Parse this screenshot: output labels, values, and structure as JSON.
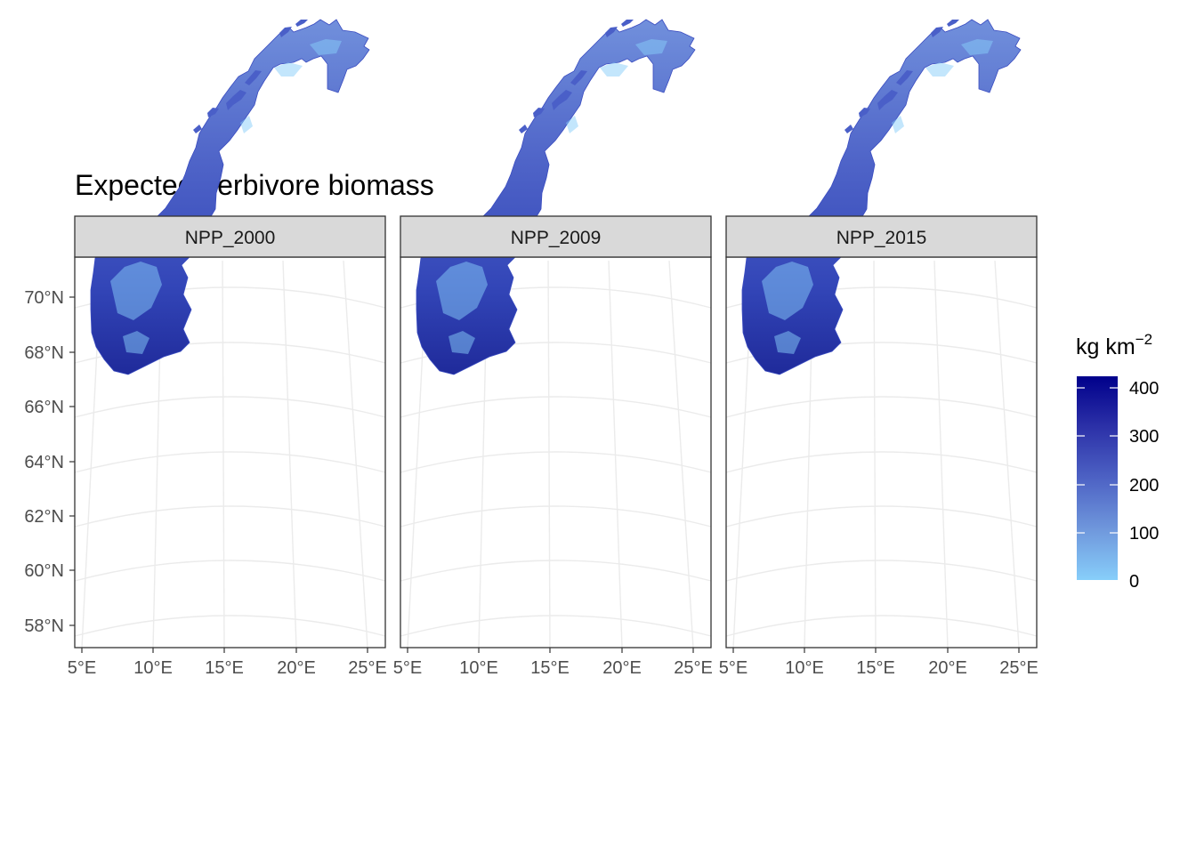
{
  "title": "Expected herbivore biomass",
  "colors": {
    "low": "#87CEFA",
    "high": "#00008B"
  },
  "legend": {
    "title_base": "kg km",
    "title_exponent": "−2",
    "breaks": [
      "400",
      "300",
      "200",
      "100",
      "0"
    ]
  },
  "chart_data": {
    "type": "heatmap",
    "title": "Expected herbivore biomass",
    "facets": [
      "NPP_2000",
      "NPP_2009",
      "NPP_2015"
    ],
    "x_ticks": [
      "5°E",
      "10°E",
      "15°E",
      "20°E",
      "25°E"
    ],
    "y_ticks": [
      "70°N",
      "68°N",
      "66°N",
      "64°N",
      "62°N",
      "60°N",
      "58°N"
    ],
    "fill_scale": {
      "label": "kg km−2",
      "min": 0,
      "max": 420,
      "breaks": [
        0,
        100,
        200,
        300,
        400
      ]
    },
    "region": "Norway"
  }
}
